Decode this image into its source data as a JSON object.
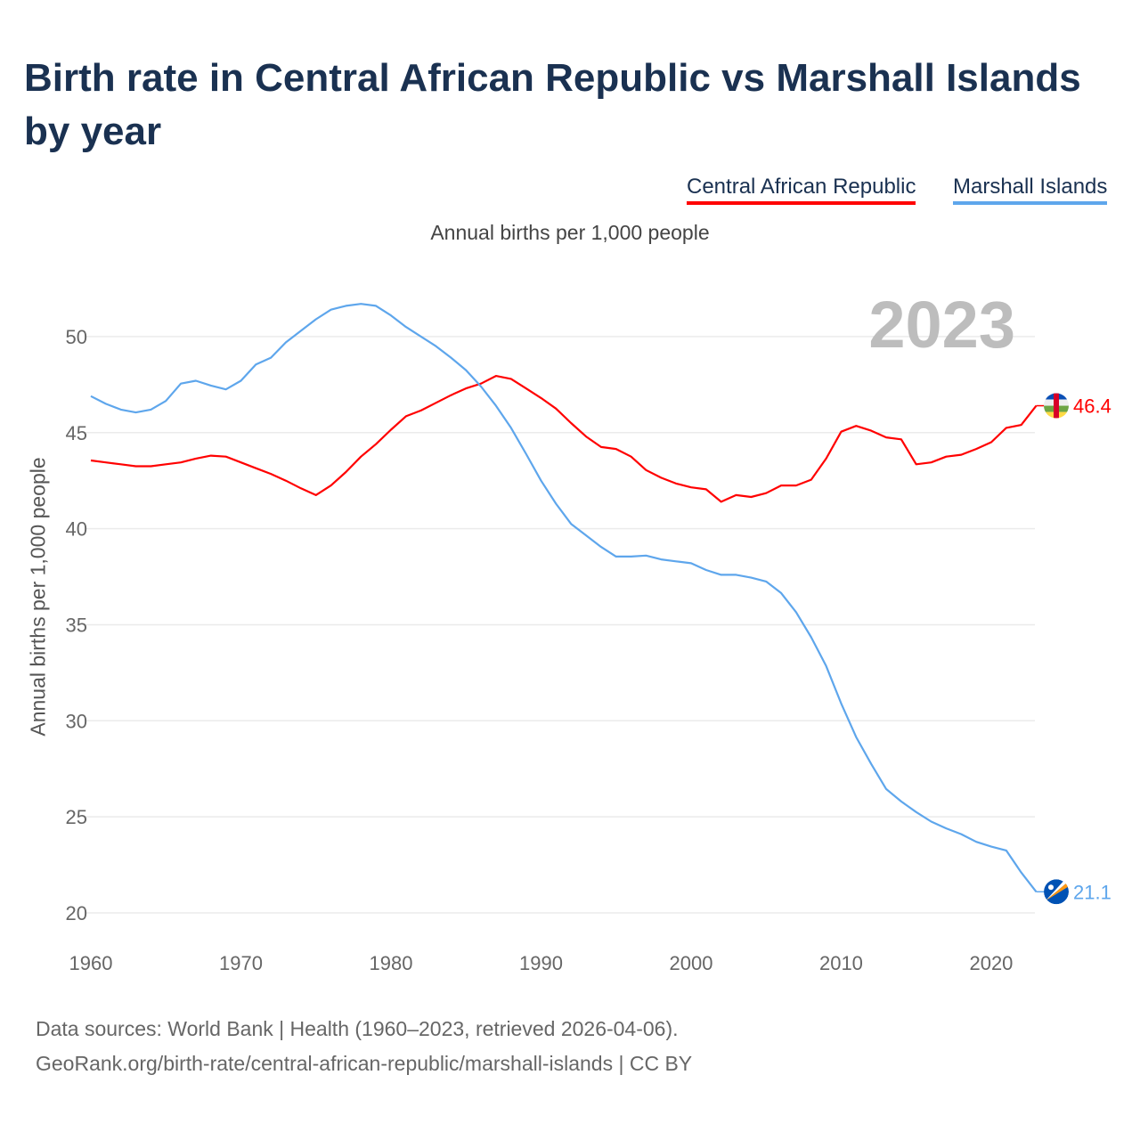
{
  "title": "Birth rate in Central African Republic vs Marshall Islands by year",
  "legend": [
    "Central African Republic",
    "Marshall Islands"
  ],
  "footer": {
    "line1": "Data sources: World Bank | Health (1960–2023, retrieved 2026-04-06).",
    "line2": "GeoRank.org/birth-rate/central-african-republic/marshall-islands | CC BY"
  },
  "chart_data": {
    "type": "line",
    "title": "Birth rate in Central African Republic vs Marshall Islands by year",
    "subtitle": "Annual births per 1,000 people",
    "ylabel": "Annual births per 1,000 people",
    "xlabel": "",
    "year_label": "2023",
    "xlim": [
      1960,
      2023
    ],
    "ylim": [
      20,
      52
    ],
    "xticks": [
      1960,
      1970,
      1980,
      1990,
      2000,
      2010,
      2020
    ],
    "yticks": [
      20,
      25,
      30,
      35,
      40,
      45,
      50
    ],
    "grid": true,
    "legend_position": "top-right",
    "x": [
      1960,
      1961,
      1962,
      1963,
      1964,
      1965,
      1966,
      1967,
      1968,
      1969,
      1970,
      1971,
      1972,
      1973,
      1974,
      1975,
      1976,
      1977,
      1978,
      1979,
      1980,
      1981,
      1982,
      1983,
      1984,
      1985,
      1986,
      1987,
      1988,
      1989,
      1990,
      1991,
      1992,
      1993,
      1994,
      1995,
      1996,
      1997,
      1998,
      1999,
      2000,
      2001,
      2002,
      2003,
      2004,
      2005,
      2006,
      2007,
      2008,
      2009,
      2010,
      2011,
      2012,
      2013,
      2014,
      2015,
      2016,
      2017,
      2018,
      2019,
      2020,
      2021,
      2022,
      2023
    ],
    "series": [
      {
        "name": "Central African Republic",
        "color": "#ff0000",
        "end_label": "46.4",
        "flag": "central-african-republic",
        "values": [
          43.55,
          43.45,
          43.35,
          43.25,
          43.25,
          43.35,
          43.45,
          43.65,
          43.8,
          43.75,
          43.45,
          43.15,
          42.85,
          42.5,
          42.1,
          41.75,
          42.25,
          42.95,
          43.75,
          44.4,
          45.15,
          45.85,
          46.15,
          46.55,
          46.95,
          47.3,
          47.55,
          47.95,
          47.8,
          47.3,
          46.8,
          46.25,
          45.5,
          44.8,
          44.25,
          44.15,
          43.75,
          43.05,
          42.65,
          42.35,
          42.15,
          42.05,
          41.4,
          41.75,
          41.65,
          41.85,
          42.25,
          42.25,
          42.55,
          43.65,
          45.05,
          45.35,
          45.1,
          44.75,
          44.65,
          43.35,
          43.45,
          43.75,
          43.85,
          44.15,
          44.5,
          45.25,
          45.4,
          46.4
        ]
      },
      {
        "name": "Marshall Islands",
        "color": "#5ea6ec",
        "end_label": "21.1",
        "flag": "marshall-islands",
        "values": [
          46.9,
          46.5,
          46.2,
          46.05,
          46.2,
          46.65,
          47.55,
          47.7,
          47.45,
          47.25,
          47.7,
          48.55,
          48.9,
          49.7,
          50.3,
          50.9,
          51.4,
          51.6,
          51.7,
          51.6,
          51.1,
          50.5,
          50.0,
          49.5,
          48.9,
          48.25,
          47.4,
          46.4,
          45.25,
          43.9,
          42.5,
          41.3,
          40.25,
          39.65,
          39.05,
          38.55,
          38.55,
          38.6,
          38.4,
          38.3,
          38.2,
          37.85,
          37.6,
          37.6,
          37.45,
          37.25,
          36.65,
          35.65,
          34.35,
          32.85,
          30.9,
          29.15,
          27.75,
          26.45,
          25.8,
          25.25,
          24.75,
          24.4,
          24.1,
          23.7,
          23.45,
          23.25,
          22.1,
          21.1
        ]
      }
    ]
  }
}
